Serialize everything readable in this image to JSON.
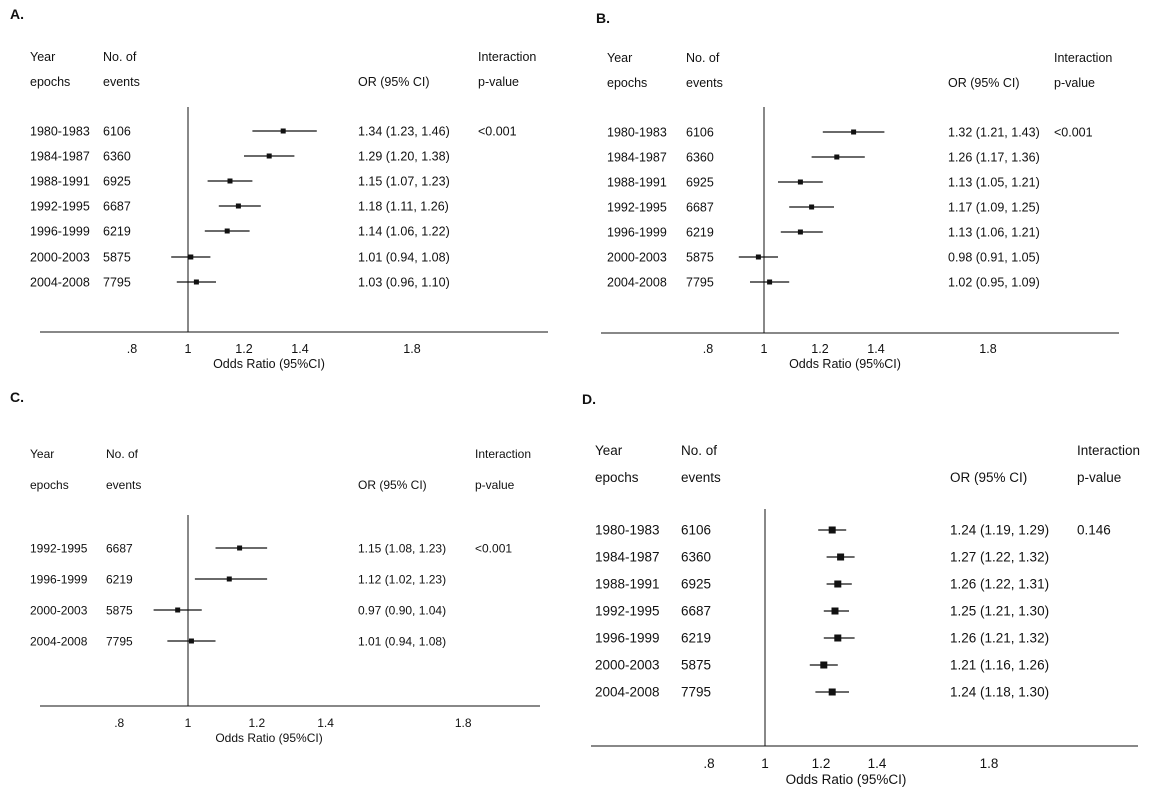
{
  "chart_data": [
    {
      "type": "forest",
      "panel_label": "A.",
      "col_headers": {
        "year_line1": "Year",
        "year_line2": "epochs",
        "events_line1": "No. of",
        "events_line2": "events",
        "or_label": "OR (95% CI)",
        "pval_line1": "Interaction",
        "pval_line2": "p-value"
      },
      "rows": [
        {
          "epoch": "1980-1983",
          "events": "6106",
          "or": 1.34,
          "lo": 1.23,
          "hi": 1.46,
          "or_text": "1.34 (1.23, 1.46)",
          "pvalue": "<0.001"
        },
        {
          "epoch": "1984-1987",
          "events": "6360",
          "or": 1.29,
          "lo": 1.2,
          "hi": 1.38,
          "or_text": "1.29 (1.20, 1.38)",
          "pvalue": ""
        },
        {
          "epoch": "1988-1991",
          "events": "6925",
          "or": 1.15,
          "lo": 1.07,
          "hi": 1.23,
          "or_text": "1.15 (1.07, 1.23)",
          "pvalue": ""
        },
        {
          "epoch": "1992-1995",
          "events": "6687",
          "or": 1.18,
          "lo": 1.11,
          "hi": 1.26,
          "or_text": "1.18 (1.11, 1.26)",
          "pvalue": ""
        },
        {
          "epoch": "1996-1999",
          "events": "6219",
          "or": 1.14,
          "lo": 1.06,
          "hi": 1.22,
          "or_text": "1.14 (1.06, 1.22)",
          "pvalue": ""
        },
        {
          "epoch": "2000-2003",
          "events": "5875",
          "or": 1.01,
          "lo": 0.94,
          "hi": 1.08,
          "or_text": "1.01 (0.94, 1.08)",
          "pvalue": ""
        },
        {
          "epoch": "2004-2008",
          "events": "7795",
          "or": 1.03,
          "lo": 0.96,
          "hi": 1.1,
          "or_text": "1.03 (0.96, 1.10)",
          "pvalue": ""
        }
      ],
      "x_ticks": [
        {
          "v": 0.8,
          "label": ".8"
        },
        {
          "v": 1,
          "label": "1"
        },
        {
          "v": 1.2,
          "label": "1.2"
        },
        {
          "v": 1.4,
          "label": "1.4"
        },
        {
          "v": 1.8,
          "label": "1.8"
        }
      ],
      "xlabel": "Odds Ratio (95%CI)",
      "reference_line": 1
    },
    {
      "type": "forest",
      "panel_label": "B.",
      "col_headers": {
        "year_line1": "Year",
        "year_line2": "epochs",
        "events_line1": "No. of",
        "events_line2": "events",
        "or_label": "OR (95% CI)",
        "pval_line1": "Interaction",
        "pval_line2": "p-value"
      },
      "rows": [
        {
          "epoch": "1980-1983",
          "events": "6106",
          "or": 1.32,
          "lo": 1.21,
          "hi": 1.43,
          "or_text": "1.32 (1.21, 1.43)",
          "pvalue": "<0.001"
        },
        {
          "epoch": "1984-1987",
          "events": "6360",
          "or": 1.26,
          "lo": 1.17,
          "hi": 1.36,
          "or_text": "1.26 (1.17, 1.36)",
          "pvalue": ""
        },
        {
          "epoch": "1988-1991",
          "events": "6925",
          "or": 1.13,
          "lo": 1.05,
          "hi": 1.21,
          "or_text": "1.13 (1.05, 1.21)",
          "pvalue": ""
        },
        {
          "epoch": "1992-1995",
          "events": "6687",
          "or": 1.17,
          "lo": 1.09,
          "hi": 1.25,
          "or_text": "1.17 (1.09, 1.25)",
          "pvalue": ""
        },
        {
          "epoch": "1996-1999",
          "events": "6219",
          "or": 1.13,
          "lo": 1.06,
          "hi": 1.21,
          "or_text": "1.13 (1.06, 1.21)",
          "pvalue": ""
        },
        {
          "epoch": "2000-2003",
          "events": "5875",
          "or": 0.98,
          "lo": 0.91,
          "hi": 1.05,
          "or_text": "0.98 (0.91, 1.05)",
          "pvalue": ""
        },
        {
          "epoch": "2004-2008",
          "events": "7795",
          "or": 1.02,
          "lo": 0.95,
          "hi": 1.09,
          "or_text": "1.02 (0.95, 1.09)",
          "pvalue": ""
        }
      ],
      "x_ticks": [
        {
          "v": 0.8,
          "label": ".8"
        },
        {
          "v": 1,
          "label": "1"
        },
        {
          "v": 1.2,
          "label": "1.2"
        },
        {
          "v": 1.4,
          "label": "1.4"
        },
        {
          "v": 1.8,
          "label": "1.8"
        }
      ],
      "xlabel": "Odds Ratio (95%CI)",
      "reference_line": 1
    },
    {
      "type": "forest",
      "panel_label": "C.",
      "col_headers": {
        "year_line1": "Year",
        "year_line2": "epochs",
        "events_line1": "No. of",
        "events_line2": "events",
        "or_label": "OR (95% CI)",
        "pval_line1": "Interaction",
        "pval_line2": "p-value"
      },
      "rows": [
        {
          "epoch": "1992-1995",
          "events": "6687",
          "or": 1.15,
          "lo": 1.08,
          "hi": 1.23,
          "or_text": "1.15 (1.08, 1.23)",
          "pvalue": "<0.001"
        },
        {
          "epoch": "1996-1999",
          "events": "6219",
          "or": 1.12,
          "lo": 1.02,
          "hi": 1.23,
          "or_text": "1.12 (1.02, 1.23)",
          "pvalue": ""
        },
        {
          "epoch": "2000-2003",
          "events": "5875",
          "or": 0.97,
          "lo": 0.9,
          "hi": 1.04,
          "or_text": "0.97 (0.90, 1.04)",
          "pvalue": ""
        },
        {
          "epoch": "2004-2008",
          "events": "7795",
          "or": 1.01,
          "lo": 0.94,
          "hi": 1.08,
          "or_text": "1.01 (0.94, 1.08)",
          "pvalue": ""
        }
      ],
      "x_ticks": [
        {
          "v": 0.8,
          "label": ".8"
        },
        {
          "v": 1,
          "label": "1"
        },
        {
          "v": 1.2,
          "label": "1.2"
        },
        {
          "v": 1.4,
          "label": "1.4"
        },
        {
          "v": 1.8,
          "label": "1.8"
        }
      ],
      "xlabel": "Odds Ratio (95%CI)",
      "reference_line": 1
    },
    {
      "type": "forest",
      "panel_label": "D.",
      "col_headers": {
        "year_line1": "Year",
        "year_line2": "epochs",
        "events_line1": "No. of",
        "events_line2": "events",
        "or_label": "OR (95% CI)",
        "pval_line1": "Interaction",
        "pval_line2": "p-value"
      },
      "rows": [
        {
          "epoch": "1980-1983",
          "events": "6106",
          "or": 1.24,
          "lo": 1.19,
          "hi": 1.29,
          "or_text": "1.24 (1.19, 1.29)",
          "pvalue": "0.146"
        },
        {
          "epoch": "1984-1987",
          "events": "6360",
          "or": 1.27,
          "lo": 1.22,
          "hi": 1.32,
          "or_text": "1.27 (1.22, 1.32)",
          "pvalue": ""
        },
        {
          "epoch": "1988-1991",
          "events": "6925",
          "or": 1.26,
          "lo": 1.22,
          "hi": 1.31,
          "or_text": "1.26 (1.22, 1.31)",
          "pvalue": ""
        },
        {
          "epoch": "1992-1995",
          "events": "6687",
          "or": 1.25,
          "lo": 1.21,
          "hi": 1.3,
          "or_text": "1.25 (1.21, 1.30)",
          "pvalue": ""
        },
        {
          "epoch": "1996-1999",
          "events": "6219",
          "or": 1.26,
          "lo": 1.21,
          "hi": 1.32,
          "or_text": "1.26 (1.21, 1.32)",
          "pvalue": ""
        },
        {
          "epoch": "2000-2003",
          "events": "5875",
          "or": 1.21,
          "lo": 1.16,
          "hi": 1.26,
          "or_text": "1.21 (1.16, 1.26)",
          "pvalue": ""
        },
        {
          "epoch": "2004-2008",
          "events": "7795",
          "or": 1.24,
          "lo": 1.18,
          "hi": 1.3,
          "or_text": "1.24 (1.18, 1.30)",
          "pvalue": ""
        }
      ],
      "x_ticks": [
        {
          "v": 0.8,
          "label": ".8"
        },
        {
          "v": 1,
          "label": "1"
        },
        {
          "v": 1.2,
          "label": "1.2"
        },
        {
          "v": 1.4,
          "label": "1.4"
        },
        {
          "v": 1.8,
          "label": "1.8"
        }
      ],
      "xlabel": "Odds Ratio (95%CI)",
      "reference_line": 1
    }
  ]
}
